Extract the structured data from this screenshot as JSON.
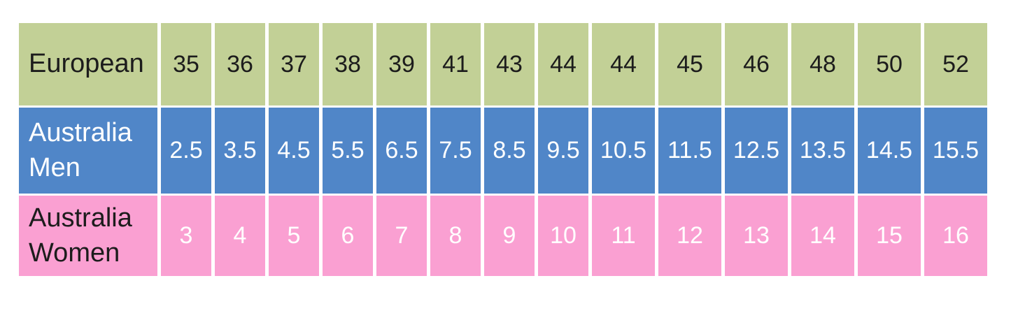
{
  "colors": {
    "european_row_bg": "#c2d096",
    "australia_men_row_bg": "#5086c8",
    "australia_women_row_bg": "#faa0d2",
    "grid_line": "#ffffff",
    "dark_text": "#1c1c1c",
    "light_text": "#ffffff"
  },
  "chart_data": {
    "type": "table",
    "legend_position": "none",
    "grid": "white gaps between cells",
    "rows": [
      {
        "label": "European",
        "values": [
          "35",
          "36",
          "37",
          "38",
          "39",
          "41",
          "43",
          "44",
          "44",
          "45",
          "46",
          "48",
          "50",
          "52"
        ]
      },
      {
        "label": "Australia Men",
        "values": [
          "2.5",
          "3.5",
          "4.5",
          "5.5",
          "6.5",
          "7.5",
          "8.5",
          "9.5",
          "10.5",
          "11.5",
          "12.5",
          "13.5",
          "14.5",
          "15.5"
        ]
      },
      {
        "label": "Australia Women",
        "values": [
          "3",
          "4",
          "5",
          "6",
          "7",
          "8",
          "9",
          "10",
          "11",
          "12",
          "13",
          "14",
          "15",
          "16"
        ]
      }
    ]
  }
}
